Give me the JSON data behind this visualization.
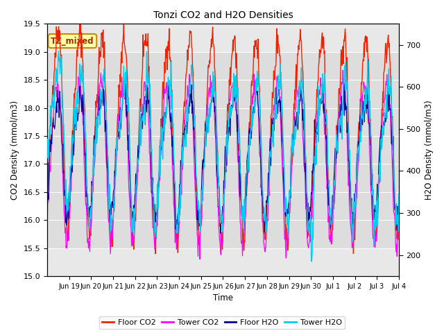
{
  "title": "Tonzi CO2 and H2O Densities",
  "xlabel": "Time",
  "ylabel_left": "CO2 Density (mmol/m3)",
  "ylabel_right": "H2O Density (mmol/m3)",
  "co2_ylim": [
    15.0,
    19.5
  ],
  "h2o_ylim": [
    150,
    750
  ],
  "shade_co2_low": 15.5,
  "shade_co2_high": 19.0,
  "floor_co2_color": "#EE2200",
  "tower_co2_color": "#FF00FF",
  "floor_h2o_color": "#000099",
  "tower_h2o_color": "#00CCEE",
  "annotation_text": "TZ_mixed",
  "annotation_bg": "#FFFFAA",
  "annotation_edge": "#CC8800",
  "legend_entries": [
    "Floor CO2",
    "Tower CO2",
    "Floor H2O",
    "Tower H2O"
  ],
  "xtick_labels": [
    "Jun 19",
    "Jun 20",
    "Jun 21",
    "Jun 22",
    "Jun 23",
    "Jun 24",
    "Jun 25",
    "Jun 26",
    "Jun 27",
    "Jun 28",
    "Jun 29",
    "Jun 30",
    "Jul 1",
    "Jul 2",
    "Jul 3",
    "Jul 4"
  ],
  "n_days": 16,
  "pts_per_day": 48,
  "background_color": "#FFFFFF",
  "plot_bg_color": "#E8E8E8",
  "shade_color": "#DDDDDD",
  "grid_color": "#FFFFFF"
}
